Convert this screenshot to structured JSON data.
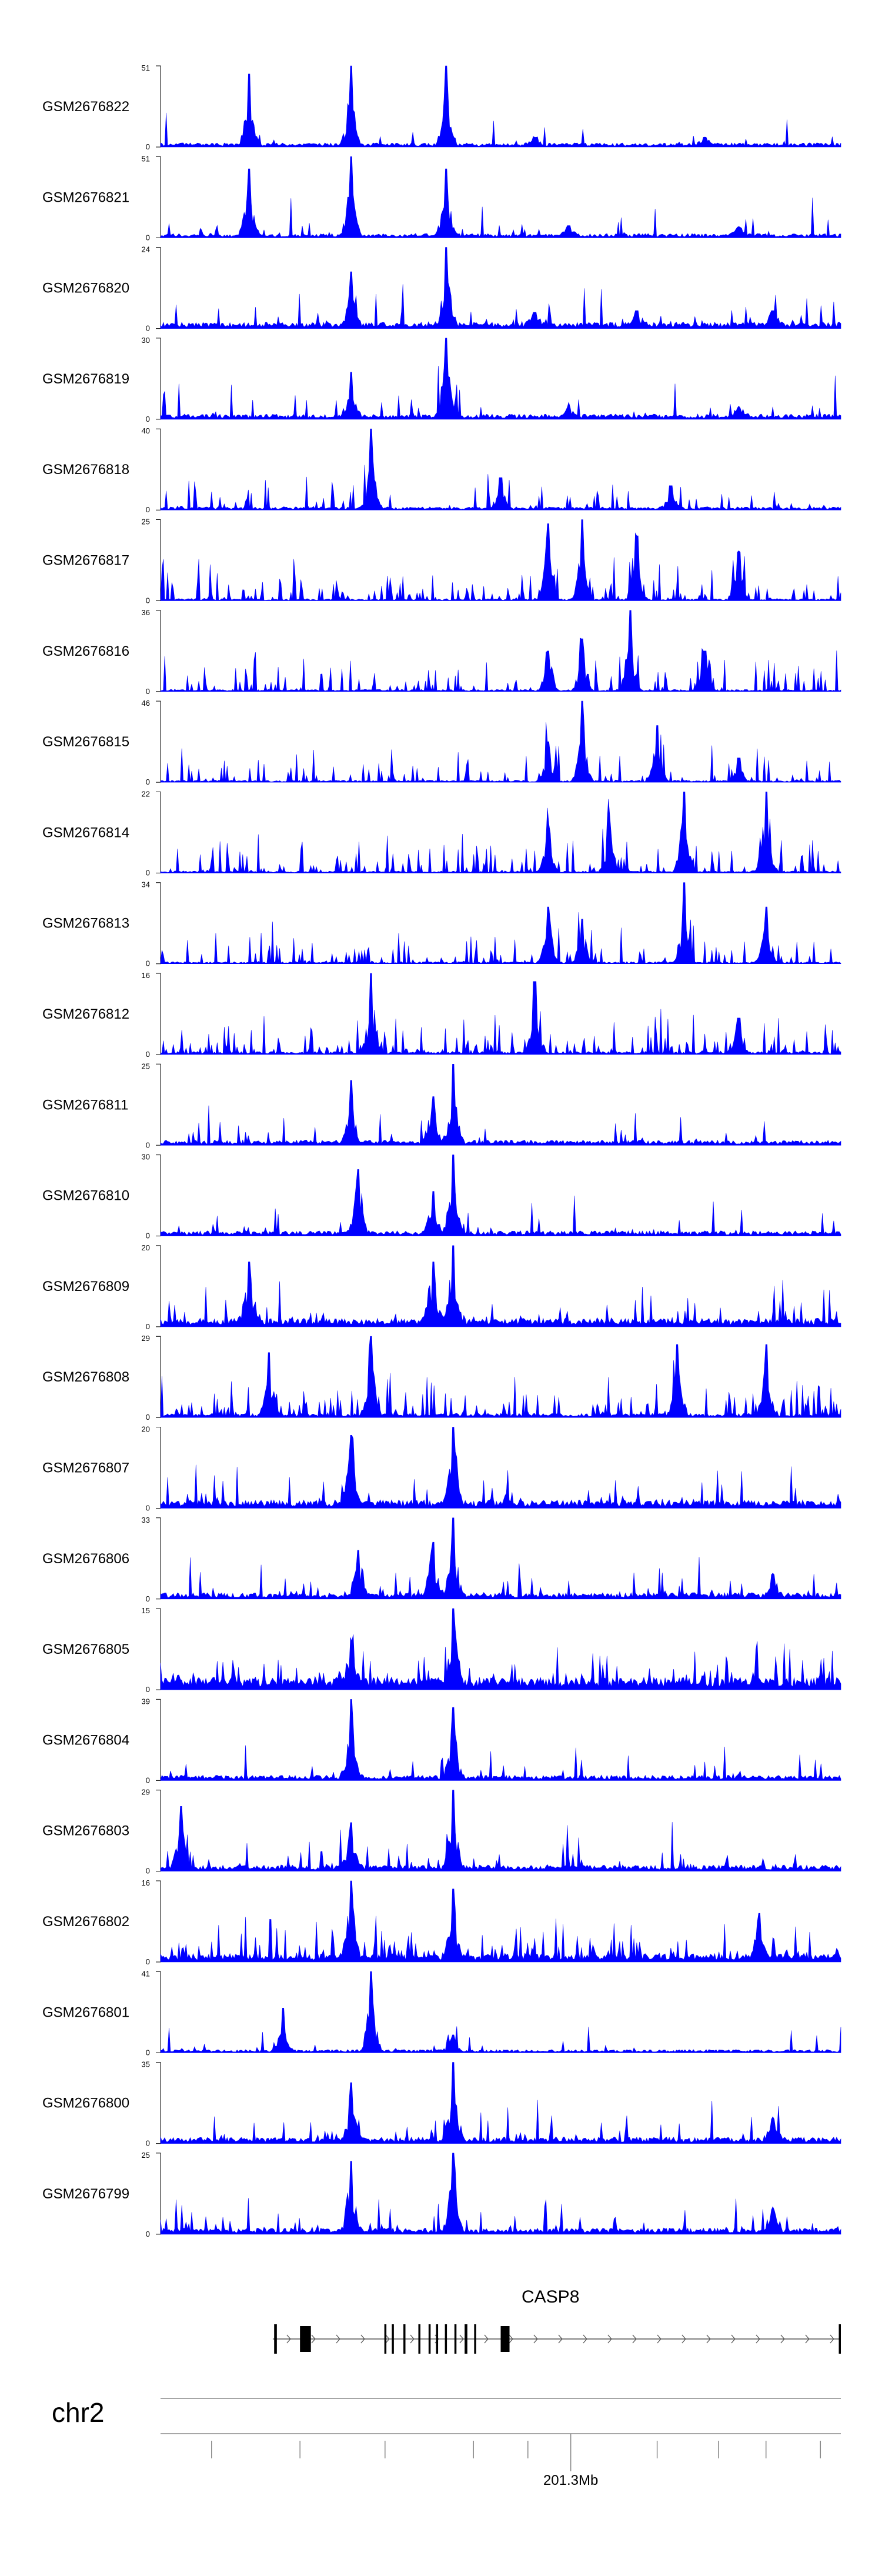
{
  "chart_data": {
    "type": "area",
    "color": "#0000ff",
    "tracks": [
      {
        "name": "GSM2676822",
        "ymax": "51",
        "ymin": "0",
        "baseline": 0.04,
        "noise": 0.09,
        "regions": [
          [
            0.13,
            0.9
          ],
          [
            0.28,
            1.0
          ],
          [
            0.42,
            1.0
          ],
          [
            0.55,
            0.12
          ],
          [
            0.8,
            0.12
          ]
        ],
        "seed": 11
      },
      {
        "name": "GSM2676821",
        "ymax": "51",
        "ymin": "0",
        "baseline": 0.04,
        "noise": 0.1,
        "regions": [
          [
            0.13,
            0.85
          ],
          [
            0.28,
            1.0
          ],
          [
            0.42,
            0.85
          ],
          [
            0.6,
            0.15
          ],
          [
            0.85,
            0.13
          ]
        ],
        "seed": 12
      },
      {
        "name": "GSM2676820",
        "ymax": "24",
        "ymin": "0",
        "baseline": 0.06,
        "noise": 0.18,
        "regions": [
          [
            0.28,
            0.7
          ],
          [
            0.42,
            1.0
          ],
          [
            0.55,
            0.2
          ],
          [
            0.7,
            0.22
          ],
          [
            0.9,
            0.22
          ]
        ],
        "seed": 13
      },
      {
        "name": "GSM2676819",
        "ymax": "30",
        "ymin": "0",
        "baseline": 0.05,
        "noise": 0.14,
        "regions": [
          [
            0.28,
            0.58
          ],
          [
            0.42,
            1.0
          ],
          [
            0.6,
            0.15
          ],
          [
            0.85,
            0.14
          ]
        ],
        "seed": 14
      },
      {
        "name": "GSM2676818",
        "ymax": "40",
        "ymin": "0",
        "baseline": 0.03,
        "noise": 0.3,
        "regions": [
          [
            0.31,
            1.0
          ],
          [
            0.5,
            0.4
          ],
          [
            0.75,
            0.3
          ]
        ],
        "seed": 15
      },
      {
        "name": "GSM2676817",
        "ymax": "25",
        "ymin": "0",
        "baseline": 0.02,
        "noise": 0.55,
        "regions": [
          [
            0.57,
            0.95
          ],
          [
            0.62,
            1.0
          ],
          [
            0.7,
            0.8
          ],
          [
            0.85,
            0.6
          ]
        ],
        "seed": 16
      },
      {
        "name": "GSM2676816",
        "ymax": "36",
        "ymin": "0",
        "baseline": 0.02,
        "noise": 0.42,
        "regions": [
          [
            0.57,
            0.5
          ],
          [
            0.62,
            0.65
          ],
          [
            0.69,
            1.0
          ],
          [
            0.8,
            0.5
          ]
        ],
        "seed": 17
      },
      {
        "name": "GSM2676815",
        "ymax": "46",
        "ymin": "0",
        "baseline": 0.02,
        "noise": 0.28,
        "regions": [
          [
            0.57,
            0.5
          ],
          [
            0.62,
            1.0
          ],
          [
            0.73,
            0.7
          ],
          [
            0.85,
            0.3
          ]
        ],
        "seed": 18
      },
      {
        "name": "GSM2676814",
        "ymax": "22",
        "ymin": "0",
        "baseline": 0.02,
        "noise": 0.45,
        "regions": [
          [
            0.57,
            0.6
          ],
          [
            0.66,
            0.7
          ],
          [
            0.77,
            1.0
          ],
          [
            0.89,
            1.0
          ]
        ],
        "seed": 19
      },
      {
        "name": "GSM2676813",
        "ymax": "34",
        "ymin": "0",
        "baseline": 0.02,
        "noise": 0.35,
        "regions": [
          [
            0.57,
            0.7
          ],
          [
            0.62,
            0.55
          ],
          [
            0.77,
            1.0
          ],
          [
            0.89,
            0.7
          ]
        ],
        "seed": 20
      },
      {
        "name": "GSM2676812",
        "ymax": "16",
        "ymin": "0",
        "baseline": 0.03,
        "noise": 0.5,
        "regions": [
          [
            0.31,
            1.0
          ],
          [
            0.55,
            0.9
          ],
          [
            0.85,
            0.45
          ]
        ],
        "seed": 21
      },
      {
        "name": "GSM2676811",
        "ymax": "25",
        "ymin": "0",
        "baseline": 0.05,
        "noise": 0.14,
        "regions": [
          [
            0.28,
            0.8
          ],
          [
            0.4,
            0.6
          ],
          [
            0.43,
            1.0
          ]
        ],
        "seed": 22
      },
      {
        "name": "GSM2676810",
        "ymax": "30",
        "ymin": "0",
        "baseline": 0.05,
        "noise": 0.12,
        "regions": [
          [
            0.29,
            0.82
          ],
          [
            0.4,
            0.55
          ],
          [
            0.43,
            1.0
          ]
        ],
        "seed": 23
      },
      {
        "name": "GSM2676809",
        "ymax": "20",
        "ymin": "0",
        "baseline": 0.08,
        "noise": 0.3,
        "regions": [
          [
            0.13,
            0.8
          ],
          [
            0.4,
            0.8
          ],
          [
            0.43,
            1.0
          ]
        ],
        "seed": 24
      },
      {
        "name": "GSM2676808",
        "ymax": "29",
        "ymin": "0",
        "baseline": 0.04,
        "noise": 0.45,
        "regions": [
          [
            0.16,
            0.8
          ],
          [
            0.31,
            1.0
          ],
          [
            0.76,
            0.9
          ],
          [
            0.89,
            0.9
          ]
        ],
        "seed": 25
      },
      {
        "name": "GSM2676807",
        "ymax": "20",
        "ymin": "0",
        "baseline": 0.08,
        "noise": 0.22,
        "regions": [
          [
            0.28,
            0.9
          ],
          [
            0.43,
            1.0
          ]
        ],
        "seed": 26
      },
      {
        "name": "GSM2676806",
        "ymax": "33",
        "ymin": "0",
        "baseline": 0.06,
        "noise": 0.25,
        "regions": [
          [
            0.29,
            0.6
          ],
          [
            0.4,
            0.7
          ],
          [
            0.43,
            1.0
          ],
          [
            0.9,
            0.3
          ]
        ],
        "seed": 27
      },
      {
        "name": "GSM2676805",
        "ymax": "15",
        "ymin": "0",
        "baseline": 0.12,
        "noise": 0.32,
        "regions": [
          [
            0.28,
            0.6
          ],
          [
            0.43,
            1.0
          ]
        ],
        "seed": 28
      },
      {
        "name": "GSM2676804",
        "ymax": "39",
        "ymin": "0",
        "baseline": 0.05,
        "noise": 0.12,
        "regions": [
          [
            0.28,
            1.0
          ],
          [
            0.43,
            0.9
          ]
        ],
        "seed": 29
      },
      {
        "name": "GSM2676803",
        "ymax": "29",
        "ymin": "0",
        "baseline": 0.06,
        "noise": 0.25,
        "regions": [
          [
            0.03,
            0.8
          ],
          [
            0.28,
            0.6
          ],
          [
            0.43,
            1.0
          ]
        ],
        "seed": 30
      },
      {
        "name": "GSM2676802",
        "ymax": "16",
        "ymin": "0",
        "baseline": 0.08,
        "noise": 0.45,
        "regions": [
          [
            0.28,
            1.0
          ],
          [
            0.43,
            0.9
          ],
          [
            0.88,
            0.6
          ]
        ],
        "seed": 31
      },
      {
        "name": "GSM2676801",
        "ymax": "41",
        "ymin": "0",
        "baseline": 0.03,
        "noise": 0.12,
        "regions": [
          [
            0.18,
            0.55
          ],
          [
            0.31,
            1.0
          ],
          [
            0.43,
            0.22
          ]
        ],
        "seed": 32
      },
      {
        "name": "GSM2676800",
        "ymax": "35",
        "ymin": "0",
        "baseline": 0.06,
        "noise": 0.2,
        "regions": [
          [
            0.28,
            0.75
          ],
          [
            0.43,
            1.0
          ],
          [
            0.9,
            0.3
          ]
        ],
        "seed": 33
      },
      {
        "name": "GSM2676799",
        "ymax": "25",
        "ymin": "0",
        "baseline": 0.06,
        "noise": 0.22,
        "regions": [
          [
            0.28,
            0.9
          ],
          [
            0.43,
            1.0
          ],
          [
            0.9,
            0.3
          ]
        ],
        "seed": 34
      }
    ],
    "gene": {
      "label": "CASP8",
      "strand": "+",
      "span": [
        0.165,
        1.0
      ],
      "exons": [
        [
          0.167,
          0.171
        ],
        [
          0.205,
          0.221
        ],
        [
          0.329,
          0.332
        ],
        [
          0.34,
          0.343
        ],
        [
          0.357,
          0.36
        ],
        [
          0.379,
          0.382
        ],
        [
          0.394,
          0.397
        ],
        [
          0.405,
          0.408
        ],
        [
          0.418,
          0.421
        ],
        [
          0.432,
          0.435
        ],
        [
          0.447,
          0.451
        ],
        [
          0.461,
          0.464
        ],
        [
          0.5,
          0.513
        ],
        [
          0.997,
          1.0
        ]
      ]
    },
    "chromosome": "chr2",
    "axis": {
      "tick_label": "201.3Mb",
      "labeled_tick": 0.603,
      "minor_ticks": [
        0.075,
        0.205,
        0.33,
        0.46,
        0.54,
        0.73,
        0.82,
        0.89,
        0.97
      ]
    }
  }
}
